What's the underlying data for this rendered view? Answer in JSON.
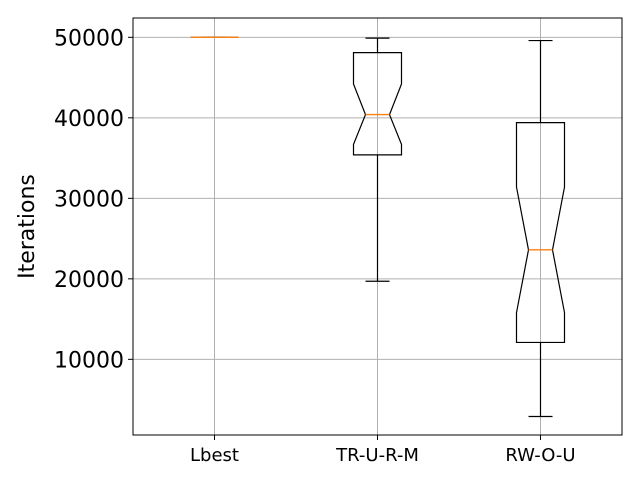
{
  "chart_data": {
    "type": "boxplot",
    "notched": true,
    "categories": [
      "Lbest",
      "TR-U-R-M",
      "RW-O-U"
    ],
    "boxes": [
      {
        "category": "Lbest",
        "whisker_low": 50000,
        "q1": 50000,
        "median": 50000,
        "q3": 50000,
        "whisker_high": 50000,
        "notch_low": 50000,
        "notch_high": 50000
      },
      {
        "category": "TR-U-R-M",
        "whisker_low": 19700,
        "q1": 35400,
        "median": 40400,
        "q3": 48100,
        "whisker_high": 49900,
        "notch_low": 36700,
        "notch_high": 44200
      },
      {
        "category": "RW-O-U",
        "whisker_low": 2900,
        "q1": 12100,
        "median": 23600,
        "q3": 39400,
        "whisker_high": 49600,
        "notch_low": 15800,
        "notch_high": 31400
      }
    ],
    "ylabel": "Iterations",
    "xlabel": "",
    "title": "",
    "yticks": [
      10000,
      20000,
      30000,
      40000,
      50000
    ],
    "ylim": [
      600,
      52400
    ],
    "grid": true,
    "colors": {
      "box": "#000000",
      "median": "#ff7f0e",
      "grid": "#b0b0b0"
    }
  }
}
